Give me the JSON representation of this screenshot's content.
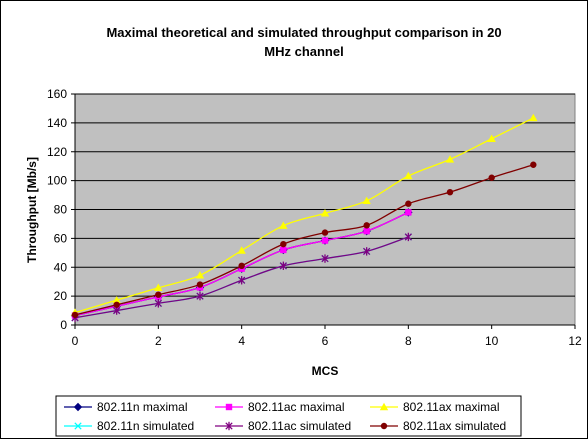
{
  "chart_data": {
    "type": "line",
    "title_lines": [
      "Maximal theoretical and simulated throughput comparison in 20",
      "MHz channel"
    ],
    "xlabel": "MCS",
    "ylabel": "Throughput [Mb/s]",
    "xlim": [
      0,
      12
    ],
    "ylim": [
      0,
      160
    ],
    "x_ticks": [
      0,
      2,
      4,
      6,
      8,
      10,
      12
    ],
    "y_ticks": [
      0,
      20,
      40,
      60,
      80,
      100,
      120,
      140,
      160
    ],
    "grid": true,
    "plot_background": "#c0c0c0",
    "legend_position": "bottom",
    "series": [
      {
        "name": "802.11n maximal",
        "color": "#000080",
        "marker": "diamond",
        "x": [
          0,
          1,
          2,
          3,
          4,
          5,
          6,
          7,
          8
        ],
        "y": [
          6.5,
          13,
          19.5,
          26,
          39,
          52,
          58.5,
          65,
          78
        ]
      },
      {
        "name": "802.11ac maximal",
        "color": "#ff00ff",
        "marker": "square",
        "x": [
          0,
          1,
          2,
          3,
          4,
          5,
          6,
          7,
          8
        ],
        "y": [
          6.5,
          13,
          19.5,
          26,
          39,
          52,
          58.5,
          65,
          78
        ]
      },
      {
        "name": "802.11ax maximal",
        "color": "#ffff00",
        "marker": "triangle",
        "x": [
          0,
          1,
          2,
          3,
          4,
          5,
          6,
          7,
          8,
          9,
          10,
          11
        ],
        "y": [
          8.6,
          17.2,
          25.8,
          34.4,
          51.6,
          68.8,
          77.4,
          86,
          103.2,
          114.7,
          129,
          143.4
        ]
      },
      {
        "name": "802.11n simulated",
        "color": "#00ffff",
        "marker": "x",
        "x": [
          0,
          1,
          2,
          3,
          4,
          5,
          6,
          7,
          8
        ],
        "y": [
          5,
          10,
          15,
          20,
          31,
          41,
          46,
          51,
          61
        ]
      },
      {
        "name": "802.11ac simulated",
        "color": "#800080",
        "marker": "star",
        "x": [
          0,
          1,
          2,
          3,
          4,
          5,
          6,
          7,
          8
        ],
        "y": [
          5,
          10,
          15,
          20,
          31,
          41,
          46,
          51,
          61
        ]
      },
      {
        "name": "802.11ax simulated",
        "color": "#800000",
        "marker": "circle",
        "x": [
          0,
          1,
          2,
          3,
          4,
          5,
          6,
          7,
          8,
          9,
          10,
          11
        ],
        "y": [
          7,
          14,
          21,
          28,
          41,
          56,
          64,
          69,
          84,
          92,
          102,
          111
        ]
      }
    ]
  }
}
